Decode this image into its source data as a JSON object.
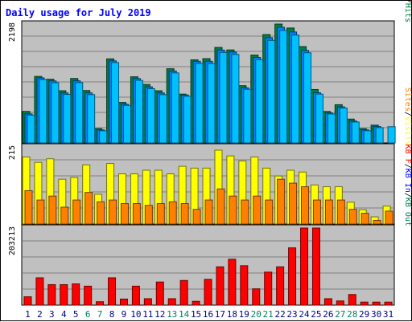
{
  "title": "Daily usage for July 2019",
  "colors": {
    "background": "#ffffff",
    "panel": "#c0c0c0",
    "gridline": "#808080",
    "title": "#0000ff",
    "hits": "#008040",
    "files": "#0080ff",
    "pages": "#00c0ff",
    "visits": "#ffff00",
    "sites": "#ff8000",
    "kb_out": "#ff0000",
    "kb_in": "#0000ff",
    "kb_f": "#ff0000",
    "weekend_label": "#00805c",
    "weekday_label": "#000080"
  },
  "chart_data": {
    "type": "bar",
    "title": "Daily usage for July 2019",
    "categories": [
      "1",
      "2",
      "3",
      "4",
      "5",
      "6",
      "7",
      "8",
      "9",
      "10",
      "11",
      "12",
      "13",
      "14",
      "15",
      "16",
      "17",
      "18",
      "19",
      "20",
      "21",
      "22",
      "23",
      "24",
      "25",
      "26",
      "27",
      "28",
      "29",
      "30",
      "31"
    ],
    "weekend_days": [
      "6",
      "7",
      "13",
      "14",
      "20",
      "21",
      "27",
      "28"
    ],
    "panels": [
      {
        "id": "top",
        "max_label": "2198",
        "ylim": [
          0,
          2198
        ],
        "grid": true,
        "legend_right": [
          {
            "text": "Pages",
            "color": "#00c0ff"
          },
          {
            "text": "/",
            "color": "#000000"
          },
          {
            "text": "Files",
            "color": "#0080ff"
          },
          {
            "text": "/",
            "color": "#000000"
          },
          {
            "text": "Hits",
            "color": "#008040"
          }
        ],
        "series": [
          {
            "name": "Hits",
            "color": "#008040",
            "values": [
              583,
              1230,
              1178,
              965,
              1192,
              969,
              264,
              1555,
              748,
              1223,
              1080,
              965,
              1372,
              903,
              1537,
              1559,
              1766,
              1720,
              1059,
              1625,
              2004,
              2198,
              2125,
              1782,
              988,
              582,
              707,
              441,
              262,
              329,
              0
            ]
          },
          {
            "name": "Files",
            "color": "#0080ff",
            "values": [
              537,
              1203,
              1147,
              924,
              1149,
              925,
              241,
              1518,
              716,
              1191,
              1037,
              924,
              1330,
              887,
              1510,
              1510,
              1718,
              1681,
              1020,
              1582,
              1947,
              2139,
              2052,
              1711,
              929,
              553,
              667,
              405,
              242,
              303,
              0
            ]
          },
          {
            "name": "Pages",
            "color": "#00c0ff",
            "values": [
              515,
              1172,
              1115,
              898,
              1116,
              893,
              225,
              1487,
              694,
              1157,
              1003,
              893,
              1295,
              864,
              1470,
              1469,
              1673,
              1637,
              992,
              1540,
              1896,
              2081,
              1995,
              1667,
              903,
              536,
              646,
              387,
              225,
              283,
              300
            ]
          }
        ]
      },
      {
        "id": "middle",
        "max_label": "215",
        "ylim": [
          0,
          215
        ],
        "grid": true,
        "legend_right": [
          {
            "text": "Sites",
            "color": "#ff8000"
          },
          {
            "text": "/",
            "color": "#000000"
          },
          {
            "text": "Visits",
            "color": "#ffff00"
          }
        ],
        "series": [
          {
            "name": "Visits",
            "color": "#ffff00",
            "values": [
              187,
              172,
              182,
              125,
              130,
              165,
              83,
              169,
              140,
              140,
              150,
              150,
              140,
              161,
              156,
              156,
              206,
              190,
              176,
              187,
              156,
              134,
              150,
              145,
              109,
              104,
              104,
              61,
              40,
              20,
              50
            ]
          },
          {
            "name": "Sites",
            "color": "#ff8000",
            "values": [
              93,
              67,
              78,
              47,
              67,
              88,
              62,
              67,
              57,
              57,
              52,
              57,
              62,
              57,
              41,
              67,
              98,
              78,
              67,
              78,
              67,
              125,
              114,
              104,
              67,
              67,
              67,
              41,
              30,
              10,
              36
            ]
          }
        ]
      },
      {
        "id": "bottom",
        "max_label": "203213",
        "ylim": [
          0,
          203213
        ],
        "grid": true,
        "legend_right": [
          {
            "text": "KB F",
            "color": "#ff0000"
          },
          {
            "text": "/",
            "color": "#000000"
          },
          {
            "text": "KB In",
            "color": "#0000ff"
          },
          {
            "text": "/",
            "color": "#000000"
          },
          {
            "text": "KB Out",
            "color": "#00805c"
          }
        ],
        "series": [
          {
            "name": "KB F",
            "color": "#ff0000",
            "values": [
              22000,
              72000,
              54000,
              54000,
              56000,
              50000,
              9000,
              72000,
              16000,
              50000,
              17000,
              61000,
              17000,
              65000,
              10000,
              68000,
              101000,
              121000,
              104000,
              43000,
              87000,
              101000,
              151000,
              203213,
              203213,
              17000,
              11000,
              28000,
              8000,
              8000,
              8000
            ]
          }
        ]
      }
    ]
  }
}
